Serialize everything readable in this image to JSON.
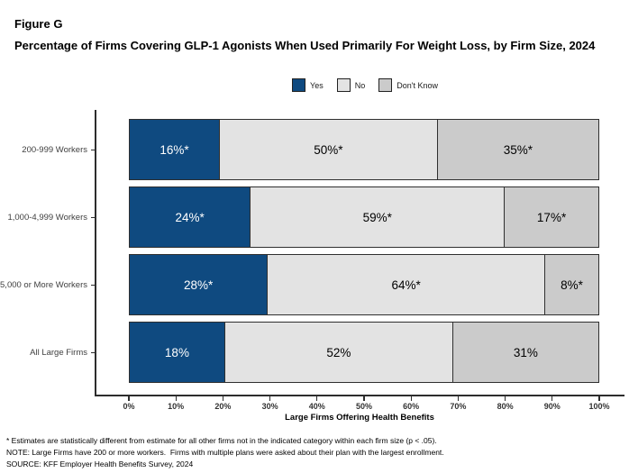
{
  "figure": {
    "label": "Figure G",
    "title": "Percentage of Firms Covering GLP-1 Agonists When Used Primarily For Weight Loss, by Firm Size, 2024"
  },
  "chart_data": {
    "type": "bar",
    "orientation": "horizontal_stacked",
    "title": "Percentage of Firms Covering GLP-1 Agonists When Used Primarily For Weight Loss, by Firm Size, 2024",
    "categories": [
      "200-999 Workers",
      "1,000-4,999 Workers",
      "5,000 or More Workers",
      "All Large Firms"
    ],
    "series": [
      {
        "name": "Yes",
        "color": "#0F4A80",
        "label_color": "#FFFFFF",
        "values": [
          16,
          24,
          28,
          18
        ],
        "labels": [
          "16%*",
          "24%*",
          "28%*",
          "18%"
        ]
      },
      {
        "name": "No",
        "color": "#E3E3E3",
        "label_color": "#000000",
        "values": [
          50,
          59,
          64,
          52
        ],
        "labels": [
          "50%*",
          "59%*",
          "64%*",
          "52%"
        ]
      },
      {
        "name": "Don't Know",
        "color": "#CBCBCB",
        "label_color": "#000000",
        "values": [
          35,
          17,
          8,
          31
        ],
        "labels": [
          "35%*",
          "17%*",
          "8%*",
          "31%"
        ]
      }
    ],
    "xlabel": "Large Firms Offering Health Benefits",
    "x_ticks": [
      "0%",
      "10%",
      "20%",
      "30%",
      "40%",
      "50%",
      "60%",
      "70%",
      "80%",
      "90%",
      "100%"
    ],
    "xlim": [
      0,
      100
    ],
    "grid": false,
    "legend_position": "top-center"
  },
  "notes": {
    "line1": "* Estimates are statistically different from estimate for all other firms not in the indicated category within each firm size (p < .05).",
    "line2": "NOTE: Large Firms have 200 or more workers.  Firms with multiple plans were asked about their plan with the largest enrollment.",
    "line3": "SOURCE: KFF Employer Health Benefits Survey, 2024"
  },
  "colors": {
    "yes_blue": "#0F4A80",
    "no_light_gray": "#E3E3E3",
    "dont_know_gray": "#CBCBCB",
    "axis": "#2D2D2D"
  }
}
